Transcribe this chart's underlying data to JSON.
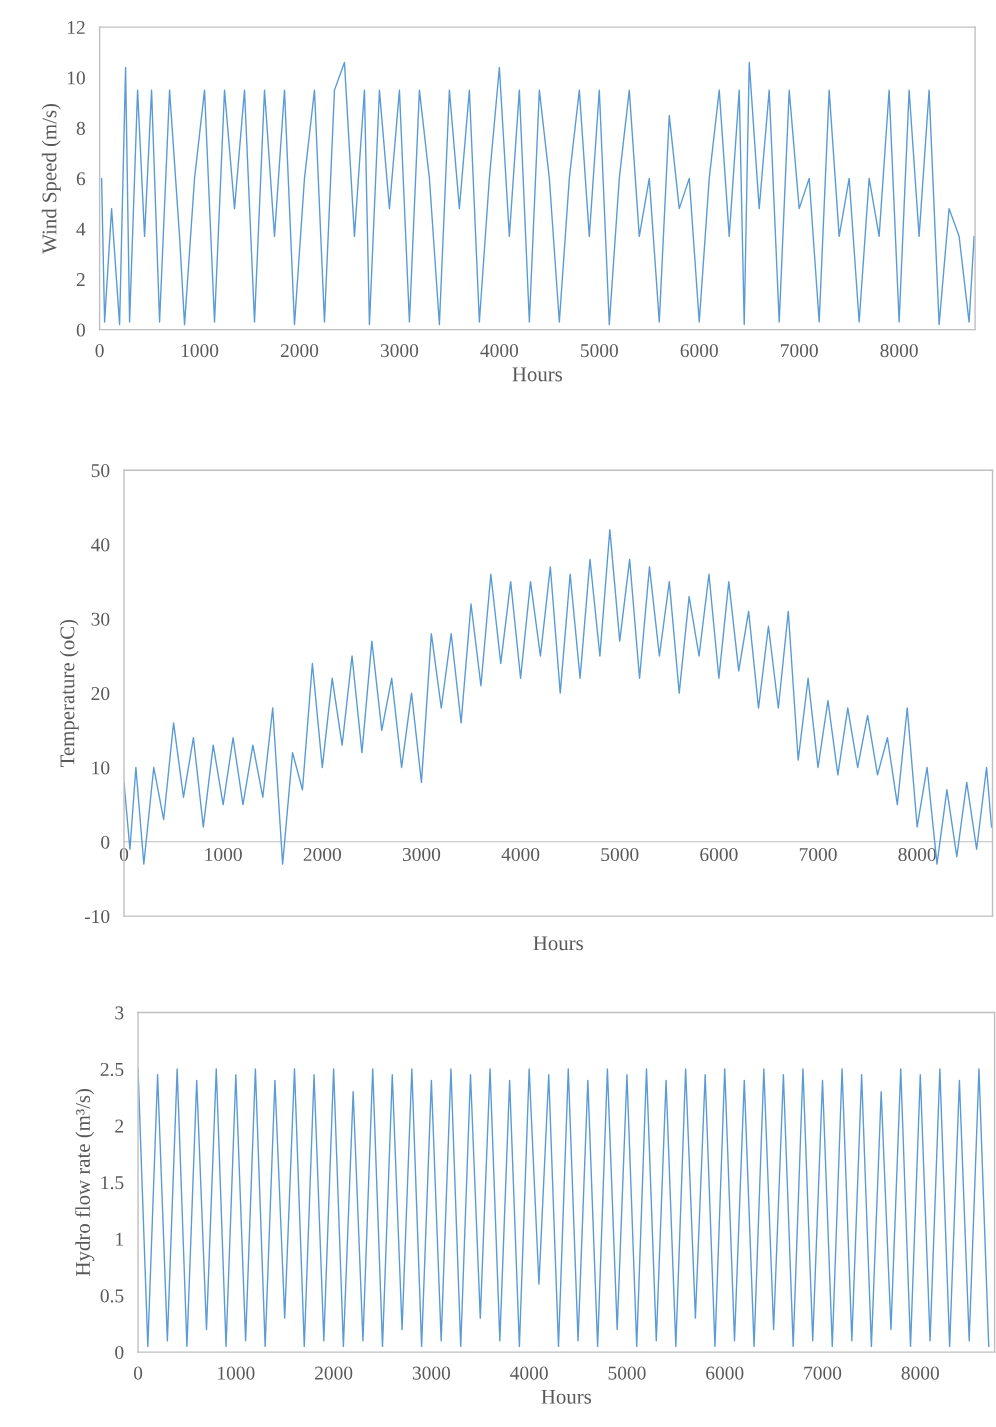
{
  "chart_data": [
    {
      "type": "line",
      "xlabel": "Hours",
      "ylabel": "Wind Speed (m/s)",
      "xlim": [
        0,
        8760
      ],
      "ylim": [
        0,
        12
      ],
      "xticks": [
        0,
        1000,
        2000,
        3000,
        4000,
        5000,
        6000,
        7000,
        8000
      ],
      "yticks": [
        0,
        2,
        4,
        6,
        8,
        10,
        12
      ],
      "grid": false,
      "legend": false,
      "series": [
        {
          "color": "#5b9bd5",
          "x": [
            20,
            50,
            120,
            200,
            260,
            300,
            380,
            450,
            520,
            600,
            700,
            800,
            850,
            950,
            1050,
            1150,
            1250,
            1350,
            1450,
            1550,
            1650,
            1750,
            1850,
            1950,
            2050,
            2150,
            2250,
            2350,
            2450,
            2550,
            2650,
            2700,
            2800,
            2900,
            3000,
            3100,
            3200,
            3300,
            3400,
            3500,
            3600,
            3700,
            3800,
            3900,
            4000,
            4100,
            4200,
            4300,
            4400,
            4500,
            4600,
            4700,
            4800,
            4900,
            5000,
            5100,
            5200,
            5300,
            5400,
            5500,
            5600,
            5700,
            5800,
            5900,
            6000,
            6100,
            6200,
            6300,
            6400,
            6450,
            6500,
            6600,
            6700,
            6800,
            6900,
            7000,
            7100,
            7200,
            7300,
            7400,
            7500,
            7600,
            7700,
            7800,
            7900,
            8000,
            8100,
            8200,
            8300,
            8400,
            8500,
            8600,
            8700,
            8750
          ],
          "values": [
            6,
            0.3,
            4.8,
            0.2,
            10.4,
            0.3,
            9.5,
            3.7,
            9.5,
            0.3,
            9.5,
            3.7,
            0.2,
            6,
            9.5,
            0.3,
            9.5,
            4.8,
            9.5,
            0.3,
            9.5,
            3.7,
            9.5,
            0.2,
            6,
            9.5,
            0.3,
            9.5,
            10.6,
            3.7,
            9.5,
            0.2,
            9.5,
            4.8,
            9.5,
            0.3,
            9.5,
            6,
            0.2,
            9.5,
            4.8,
            9.5,
            0.3,
            6,
            10.4,
            3.7,
            9.5,
            0.3,
            9.5,
            6,
            0.3,
            6,
            9.5,
            3.7,
            9.5,
            0.2,
            6,
            9.5,
            3.7,
            6,
            0.3,
            8.5,
            4.8,
            6,
            0.3,
            6,
            9.5,
            3.7,
            9.5,
            0.2,
            10.6,
            4.8,
            9.5,
            0.3,
            9.5,
            4.8,
            6,
            0.3,
            9.5,
            3.7,
            6,
            0.3,
            6,
            3.7,
            9.5,
            0.3,
            9.5,
            3.7,
            9.5,
            0.2,
            4.8,
            3.7,
            0.3,
            3.7
          ]
        }
      ]
    },
    {
      "type": "line",
      "xlabel": "Hours",
      "ylabel": "Temperature (oC)",
      "xlim": [
        0,
        8760
      ],
      "ylim": [
        -10,
        50
      ],
      "xticks": [
        0,
        1000,
        2000,
        3000,
        4000,
        5000,
        6000,
        7000,
        8000
      ],
      "yticks": [
        -10,
        0,
        10,
        20,
        30,
        40,
        50
      ],
      "grid": false,
      "legend": false,
      "series": [
        {
          "color": "#5b9bd5",
          "x": [
            0,
            60,
            120,
            200,
            300,
            400,
            500,
            600,
            700,
            800,
            900,
            1000,
            1100,
            1200,
            1300,
            1400,
            1500,
            1600,
            1700,
            1800,
            1900,
            2000,
            2100,
            2200,
            2300,
            2400,
            2500,
            2600,
            2700,
            2800,
            2900,
            3000,
            3100,
            3200,
            3300,
            3400,
            3500,
            3600,
            3700,
            3800,
            3900,
            4000,
            4100,
            4200,
            4300,
            4400,
            4500,
            4600,
            4700,
            4800,
            4900,
            5000,
            5100,
            5200,
            5300,
            5400,
            5500,
            5600,
            5700,
            5800,
            5900,
            6000,
            6100,
            6200,
            6300,
            6400,
            6500,
            6600,
            6700,
            6800,
            6900,
            7000,
            7100,
            7200,
            7300,
            7400,
            7500,
            7600,
            7700,
            7800,
            7900,
            8000,
            8100,
            8200,
            8300,
            8400,
            8500,
            8600,
            8700,
            8750
          ],
          "values": [
            8,
            -1,
            10,
            -3,
            10,
            3,
            16,
            6,
            14,
            2,
            13,
            5,
            14,
            5,
            13,
            6,
            18,
            -3,
            12,
            7,
            24,
            10,
            22,
            13,
            25,
            12,
            27,
            15,
            22,
            10,
            20,
            8,
            28,
            18,
            28,
            16,
            32,
            21,
            36,
            24,
            35,
            22,
            35,
            25,
            37,
            20,
            36,
            22,
            38,
            25,
            42,
            27,
            38,
            22,
            37,
            25,
            35,
            20,
            33,
            25,
            36,
            22,
            35,
            23,
            31,
            18,
            29,
            18,
            31,
            11,
            22,
            10,
            19,
            9,
            18,
            10,
            17,
            9,
            14,
            5,
            18,
            2,
            10,
            -3,
            7,
            -2,
            8,
            -1,
            10,
            2
          ]
        }
      ]
    },
    {
      "type": "line",
      "xlabel": "Hours",
      "ylabel": "Hydro flow rate (m³/s)",
      "xlim": [
        0,
        8760
      ],
      "ylim": [
        0,
        3
      ],
      "xticks": [
        0,
        1000,
        2000,
        3000,
        4000,
        5000,
        6000,
        7000,
        8000
      ],
      "yticks": [
        0,
        0.5,
        1,
        1.5,
        2,
        2.5,
        3
      ],
      "grid": false,
      "legend": false,
      "series": [
        {
          "color": "#5b9bd5",
          "x": [
            0,
            100,
            200,
            300,
            400,
            500,
            600,
            700,
            800,
            900,
            1000,
            1100,
            1200,
            1300,
            1400,
            1500,
            1600,
            1700,
            1800,
            1900,
            2000,
            2100,
            2200,
            2300,
            2400,
            2500,
            2600,
            2700,
            2800,
            2900,
            3000,
            3100,
            3200,
            3300,
            3400,
            3500,
            3600,
            3700,
            3800,
            3900,
            4000,
            4100,
            4200,
            4300,
            4400,
            4500,
            4600,
            4700,
            4800,
            4900,
            5000,
            5100,
            5200,
            5300,
            5400,
            5500,
            5600,
            5700,
            5800,
            5900,
            6000,
            6100,
            6200,
            6300,
            6400,
            6500,
            6600,
            6700,
            6800,
            6900,
            7000,
            7100,
            7200,
            7300,
            7400,
            7500,
            7600,
            7700,
            7800,
            7900,
            8000,
            8100,
            8200,
            8300,
            8400,
            8500,
            8600,
            8700
          ],
          "values": [
            2.5,
            0.05,
            2.45,
            0.1,
            2.5,
            0.05,
            2.4,
            0.2,
            2.5,
            0.05,
            2.45,
            0.1,
            2.5,
            0.05,
            2.4,
            0.3,
            2.5,
            0.05,
            2.45,
            0.1,
            2.5,
            0.05,
            2.3,
            0.1,
            2.5,
            0.05,
            2.45,
            0.2,
            2.5,
            0.05,
            2.4,
            0.1,
            2.5,
            0.05,
            2.45,
            0.3,
            2.5,
            0.1,
            2.4,
            0.05,
            2.5,
            0.6,
            2.45,
            0.05,
            2.5,
            0.1,
            2.4,
            0.05,
            2.5,
            0.2,
            2.45,
            0.05,
            2.5,
            0.1,
            2.4,
            0.05,
            2.5,
            0.3,
            2.45,
            0.05,
            2.5,
            0.1,
            2.4,
            0.05,
            2.5,
            0.2,
            2.45,
            0.05,
            2.5,
            0.1,
            2.4,
            0.05,
            2.5,
            0.1,
            2.45,
            0.05,
            2.3,
            0.2,
            2.5,
            0.05,
            2.45,
            0.1,
            2.5,
            0.05,
            2.4,
            0.1,
            2.5,
            0.05
          ]
        }
      ]
    }
  ]
}
